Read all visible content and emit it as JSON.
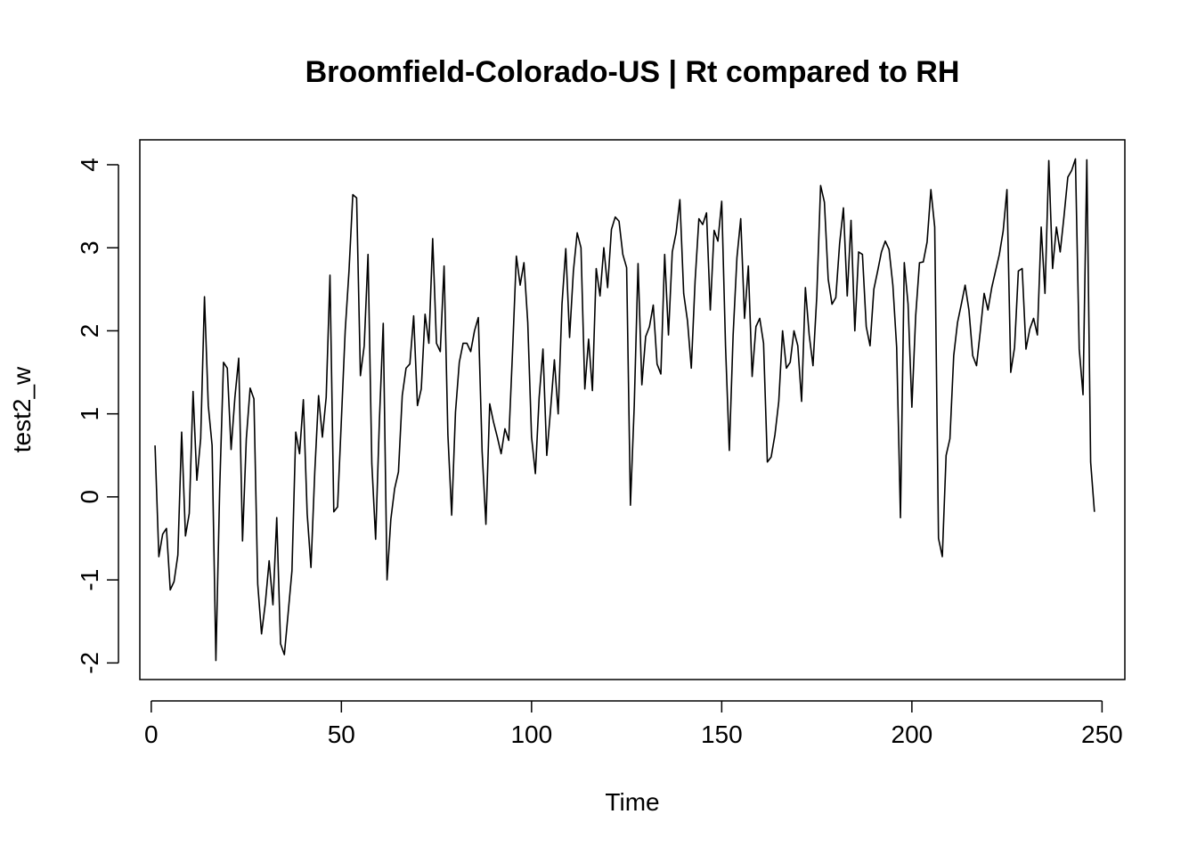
{
  "chart_data": {
    "type": "line",
    "title": "Broomfield-Colorado-US | Rt compared to RH",
    "xlabel": "Time",
    "ylabel": "test2_w",
    "xlim": [
      -3,
      256
    ],
    "ylim": [
      -2.2,
      4.3
    ],
    "xticks": [
      0,
      50,
      100,
      150,
      200,
      250
    ],
    "yticks": [
      -2,
      -1,
      0,
      1,
      2,
      3,
      4
    ],
    "grid": false,
    "legend": "none",
    "line_color": "#000000",
    "series": [
      {
        "x": [
          1,
          2,
          3,
          4,
          5,
          6,
          7,
          8,
          9,
          10,
          11,
          12,
          13,
          14,
          15,
          16,
          17,
          18,
          19,
          20,
          21,
          22,
          23,
          24,
          25,
          26,
          27,
          28,
          29,
          30,
          31,
          32,
          33,
          34,
          35,
          36,
          37,
          38,
          39,
          40,
          41,
          42,
          43,
          44,
          45,
          46,
          47,
          48,
          49,
          50,
          51,
          52,
          53,
          54,
          55,
          56,
          57,
          58,
          59,
          60,
          61,
          62,
          63,
          64,
          65,
          66,
          67,
          68,
          69,
          70,
          71,
          72,
          73,
          74,
          75,
          76,
          77,
          78,
          79,
          80,
          81,
          82,
          83,
          84,
          85,
          86,
          87,
          88,
          89,
          90,
          91,
          92,
          93,
          94,
          95,
          96,
          97,
          98,
          99,
          100,
          101,
          102,
          103,
          104,
          105,
          106,
          107,
          108,
          109,
          110,
          111,
          112,
          113,
          114,
          115,
          116,
          117,
          118,
          119,
          120,
          121,
          122,
          123,
          124,
          125,
          126,
          127,
          128,
          129,
          130,
          131,
          132,
          133,
          134,
          135,
          136,
          137,
          138,
          139,
          140,
          141,
          142,
          143,
          144,
          145,
          146,
          147,
          148,
          149,
          150,
          151,
          152,
          153,
          154,
          155,
          156,
          157,
          158,
          159,
          160,
          161,
          162,
          163,
          164,
          165,
          166,
          167,
          168,
          169,
          170,
          171,
          172,
          173,
          174,
          175,
          176,
          177,
          178,
          179,
          180,
          181,
          182,
          183,
          184,
          185,
          186,
          187,
          188,
          189,
          190,
          191,
          192,
          193,
          194,
          195,
          196,
          197,
          198,
          199,
          200,
          201,
          202,
          203,
          204,
          205,
          206,
          207,
          208,
          209,
          210,
          211,
          212,
          213,
          214,
          215,
          216,
          217,
          218,
          219,
          220,
          221,
          222,
          223,
          224,
          225,
          226,
          227,
          228,
          229,
          230,
          231,
          232,
          233,
          234,
          235,
          236,
          237,
          238,
          239,
          240,
          241,
          242,
          243,
          244,
          245,
          246,
          247,
          248
        ],
        "y": [
          0.62,
          -0.72,
          -0.45,
          -0.38,
          -1.12,
          -1.02,
          -0.7,
          0.78,
          -0.47,
          -0.2,
          1.27,
          0.2,
          0.7,
          2.41,
          1.1,
          0.62,
          -1.97,
          0.1,
          1.62,
          1.55,
          0.57,
          1.2,
          1.67,
          -0.53,
          0.7,
          1.31,
          1.18,
          -1.05,
          -1.65,
          -1.28,
          -0.77,
          -1.3,
          -0.25,
          -1.77,
          -1.9,
          -1.4,
          -0.89,
          0.78,
          0.52,
          1.17,
          -0.2,
          -0.85,
          0.3,
          1.22,
          0.72,
          1.2,
          2.67,
          -0.18,
          -0.12,
          0.93,
          2.0,
          2.72,
          3.64,
          3.6,
          1.46,
          1.82,
          2.92,
          0.4,
          -0.51,
          0.93,
          2.09,
          -1.0,
          -0.27,
          0.1,
          0.3,
          1.22,
          1.55,
          1.6,
          2.18,
          1.1,
          1.3,
          2.2,
          1.85,
          3.11,
          1.85,
          1.75,
          2.78,
          0.75,
          -0.22,
          1.02,
          1.62,
          1.85,
          1.85,
          1.75,
          2.0,
          2.16,
          0.55,
          -0.33,
          1.12,
          0.9,
          0.72,
          0.52,
          0.82,
          0.68,
          1.75,
          2.9,
          2.55,
          2.82,
          2.1,
          0.72,
          0.28,
          1.2,
          1.78,
          0.5,
          1.05,
          1.65,
          1.0,
          2.32,
          2.99,
          1.92,
          2.72,
          3.18,
          3.0,
          1.3,
          1.9,
          1.28,
          2.75,
          2.42,
          3.0,
          2.52,
          3.22,
          3.37,
          3.32,
          2.92,
          2.76,
          -0.1,
          1.1,
          2.81,
          1.35,
          1.93,
          2.05,
          2.31,
          1.6,
          1.48,
          2.92,
          1.95,
          2.95,
          3.18,
          3.58,
          2.45,
          2.12,
          1.55,
          2.6,
          3.35,
          3.28,
          3.42,
          2.25,
          3.21,
          3.08,
          3.56,
          1.82,
          0.56,
          1.95,
          2.88,
          3.35,
          2.15,
          2.78,
          1.45,
          2.05,
          2.15,
          1.85,
          0.42,
          0.48,
          0.75,
          1.15,
          2.0,
          1.55,
          1.62,
          2.0,
          1.82,
          1.15,
          2.52,
          1.95,
          1.58,
          2.42,
          3.75,
          3.55,
          2.62,
          2.32,
          2.4,
          3.05,
          3.48,
          2.42,
          3.33,
          2.0,
          2.95,
          2.92,
          2.05,
          1.82,
          2.5,
          2.72,
          2.95,
          3.08,
          2.98,
          2.55,
          1.8,
          -0.25,
          2.82,
          2.32,
          1.08,
          2.18,
          2.82,
          2.83,
          3.07,
          3.7,
          3.25,
          -0.5,
          -0.72,
          0.5,
          0.7,
          1.7,
          2.1,
          2.32,
          2.55,
          2.25,
          1.7,
          1.58,
          2.0,
          2.45,
          2.25,
          2.52,
          2.72,
          2.92,
          3.2,
          3.7,
          1.5,
          1.8,
          2.72,
          2.75,
          1.78,
          2.02,
          2.15,
          1.95,
          3.25,
          2.45,
          4.05,
          2.75,
          3.25,
          2.95,
          3.38,
          3.85,
          3.93,
          4.07,
          1.78,
          1.23,
          4.06,
          0.42,
          -0.18
        ]
      }
    ]
  }
}
